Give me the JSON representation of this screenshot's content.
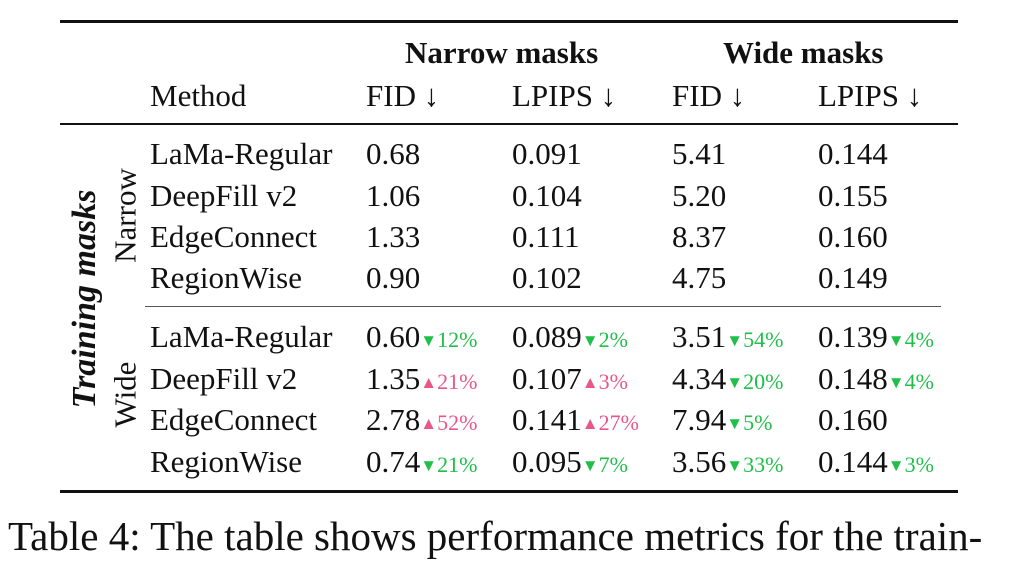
{
  "table": {
    "group_headers": [
      "Narrow masks",
      "Wide masks"
    ],
    "column_headers": [
      "Method",
      "FID ↓",
      "LPIPS ↓",
      "FID ↓",
      "LPIPS ↓"
    ],
    "row_group_label": "Training masks",
    "sections": [
      {
        "label": "Narrow",
        "rows": [
          {
            "method": "LaMa-Regular",
            "cells": [
              {
                "v": "0.68"
              },
              {
                "v": "0.091"
              },
              {
                "v": "5.41"
              },
              {
                "v": "0.144"
              }
            ]
          },
          {
            "method": "DeepFill v2",
            "cells": [
              {
                "v": "1.06"
              },
              {
                "v": "0.104"
              },
              {
                "v": "5.20"
              },
              {
                "v": "0.155"
              }
            ]
          },
          {
            "method": "EdgeConnect",
            "cells": [
              {
                "v": "1.33"
              },
              {
                "v": "0.111"
              },
              {
                "v": "8.37"
              },
              {
                "v": "0.160"
              }
            ]
          },
          {
            "method": "RegionWise",
            "cells": [
              {
                "v": "0.90"
              },
              {
                "v": "0.102"
              },
              {
                "v": "4.75"
              },
              {
                "v": "0.149"
              }
            ]
          }
        ]
      },
      {
        "label": "Wide",
        "rows": [
          {
            "method": "LaMa-Regular",
            "cells": [
              {
                "v": "0.60",
                "dir": "down",
                "delta": "12%"
              },
              {
                "v": "0.089",
                "dir": "down",
                "delta": "2%"
              },
              {
                "v": "3.51",
                "dir": "down",
                "delta": "54%"
              },
              {
                "v": "0.139",
                "dir": "down",
                "delta": "4%"
              }
            ]
          },
          {
            "method": "DeepFill v2",
            "cells": [
              {
                "v": "1.35",
                "dir": "up",
                "delta": "21%"
              },
              {
                "v": "0.107",
                "dir": "up",
                "delta": "3%"
              },
              {
                "v": "4.34",
                "dir": "down",
                "delta": "20%"
              },
              {
                "v": "0.148",
                "dir": "down",
                "delta": "4%"
              }
            ]
          },
          {
            "method": "EdgeConnect",
            "cells": [
              {
                "v": "2.78",
                "dir": "up",
                "delta": "52%"
              },
              {
                "v": "0.141",
                "dir": "up",
                "delta": "27%"
              },
              {
                "v": "7.94",
                "dir": "down",
                "delta": "5%"
              },
              {
                "v": "0.160"
              }
            ]
          },
          {
            "method": "RegionWise",
            "cells": [
              {
                "v": "0.74",
                "dir": "down",
                "delta": "21%"
              },
              {
                "v": "0.095",
                "dir": "down",
                "delta": "7%"
              },
              {
                "v": "3.56",
                "dir": "down",
                "delta": "33%"
              },
              {
                "v": "0.144",
                "dir": "down",
                "delta": "3%"
              }
            ]
          }
        ]
      }
    ],
    "colors": {
      "improvement": "#1fbf4a",
      "degradation": "#e8578a"
    },
    "icons": {
      "down": "▼",
      "up": "▲"
    }
  },
  "caption": "Table 4: The table shows performance metrics for the train-"
}
